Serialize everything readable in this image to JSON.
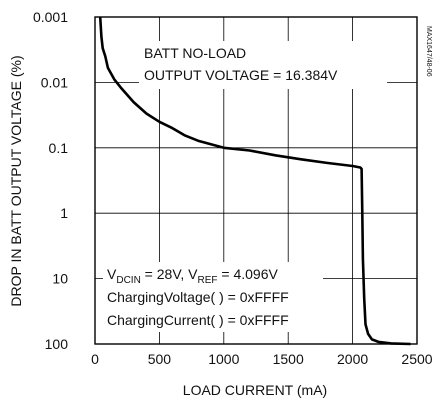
{
  "chart_data": {
    "type": "line",
    "title": "",
    "tag": "MAX1647/48-06",
    "xlabel": "LOAD CURRENT (mA)",
    "ylabel": "DROP IN BATT OUTPUT VOLTAGE (%)",
    "x_scale": "linear",
    "y_scale": "log",
    "y_inverted": true,
    "xlim": [
      0,
      2500
    ],
    "ylim": [
      0.001,
      100
    ],
    "x_ticks": [
      "0",
      "500",
      "1000",
      "1500",
      "2000",
      "2500"
    ],
    "y_ticks": [
      "0.001",
      "0.01",
      "0.1",
      "1",
      "10",
      "100"
    ],
    "grid": true,
    "annotations": {
      "top_line1": "BATT NO-LOAD",
      "top_line2": "OUTPUT VOLTAGE = 16.384V",
      "cond_v": "V",
      "cond_dcin_sub": "DCIN",
      "cond_mid": " = 28V, V",
      "cond_ref_sub": "REF",
      "cond_end": " = 4.096V",
      "cond_line2": "ChargingVoltage( ) = 0xFFFF",
      "cond_line3": "ChargingCurrent( ) = 0xFFFF"
    },
    "series": [
      {
        "points": [
          [
            40,
            0.001
          ],
          [
            50,
            0.002
          ],
          [
            60,
            0.003
          ],
          [
            80,
            0.004
          ],
          [
            100,
            0.006
          ],
          [
            150,
            0.009
          ],
          [
            200,
            0.012
          ],
          [
            300,
            0.02
          ],
          [
            400,
            0.03
          ],
          [
            500,
            0.04
          ],
          [
            600,
            0.05
          ],
          [
            700,
            0.065
          ],
          [
            800,
            0.078
          ],
          [
            900,
            0.088
          ],
          [
            1000,
            0.1
          ],
          [
            1200,
            0.11
          ],
          [
            1400,
            0.13
          ],
          [
            1600,
            0.15
          ],
          [
            1800,
            0.17
          ],
          [
            2000,
            0.19
          ],
          [
            2060,
            0.2
          ],
          [
            2070,
            0.21
          ],
          [
            2075,
            1
          ],
          [
            2080,
            5
          ],
          [
            2090,
            20
          ],
          [
            2100,
            50
          ],
          [
            2120,
            70
          ],
          [
            2150,
            85
          ],
          [
            2200,
            93
          ],
          [
            2300,
            98
          ],
          [
            2450,
            100
          ]
        ]
      }
    ]
  }
}
